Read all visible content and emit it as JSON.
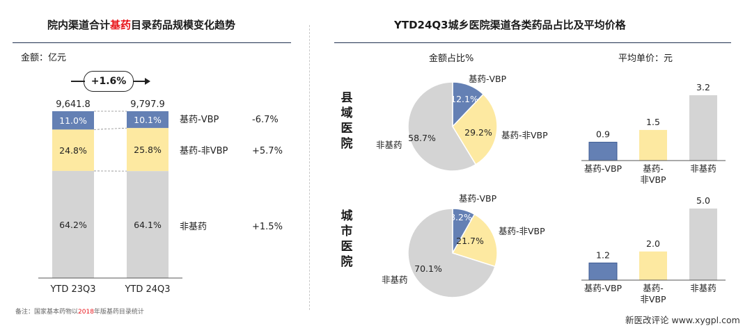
{
  "left": {
    "title_pre": "院内渠道合计",
    "title_hl": "基药",
    "title_post": "目录药品规模变化趋势",
    "unit": "金额：亿元",
    "growth": "+1.6%",
    "note_pre": "备注：国家基本药物以",
    "note_year": "2018",
    "note_post": "年版基药目录统计"
  },
  "right": {
    "title": "YTD24Q3城乡医院渠道各类药品占比及平均价格",
    "pie_header": "金额占比%",
    "bar_header": "平均单价：元",
    "county_label": [
      "县",
      "域",
      "医",
      "院"
    ],
    "city_label": [
      "城",
      "市",
      "医",
      "院"
    ]
  },
  "watermark": "新医改评论 www.xygpl.com",
  "colors": {
    "vbp": "#6480b4",
    "nonvbp": "#fde9a1",
    "nonbase": "#d4d4d4",
    "rule": "#1f2f4f",
    "highlight": "#e8151b"
  },
  "chart_data": [
    {
      "type": "bar",
      "subtype": "stacked-100",
      "categories": [
        "YTD 23Q3",
        "YTD 24Q3"
      ],
      "totals": [
        "9,641.8",
        "9,797.9"
      ],
      "series": [
        {
          "name": "基药-VBP",
          "values": [
            11.0,
            10.1
          ],
          "labels": [
            "11.0%",
            "10.1%"
          ],
          "growth": "-6.7%",
          "color": "#6480b4"
        },
        {
          "name": "基药-非VBP",
          "values": [
            24.8,
            25.8
          ],
          "labels": [
            "24.8%",
            "25.8%"
          ],
          "growth": "+5.7%",
          "color": "#fde9a1"
        },
        {
          "name": "非基药",
          "values": [
            64.2,
            64.1
          ],
          "labels": [
            "64.2%",
            "64.1%"
          ],
          "growth": "+1.5%",
          "color": "#d4d4d4"
        }
      ],
      "ylim": [
        0,
        100
      ]
    },
    {
      "type": "pie",
      "panel": "县域医院",
      "slices": [
        {
          "name": "基药-VBP",
          "value": 12.1,
          "label": "12.1%",
          "color": "#6480b4"
        },
        {
          "name": "基药-非VBP",
          "value": 29.2,
          "label": "29.2%",
          "color": "#fde9a1"
        },
        {
          "name": "非基药",
          "value": 58.7,
          "label": "58.7%",
          "color": "#d4d4d4"
        }
      ]
    },
    {
      "type": "pie",
      "panel": "城市医院",
      "slices": [
        {
          "name": "基药-VBP",
          "value": 8.2,
          "label": "8.2%",
          "color": "#6480b4"
        },
        {
          "name": "基药-非VBP",
          "value": 21.7,
          "label": "21.7%",
          "color": "#fde9a1"
        },
        {
          "name": "非基药",
          "value": 70.1,
          "label": "70.1%",
          "color": "#d4d4d4"
        }
      ]
    },
    {
      "type": "bar",
      "panel": "县域医院",
      "categories": [
        "基药-VBP",
        "基药-非VBP",
        "非基药"
      ],
      "values": [
        0.9,
        1.5,
        3.2
      ],
      "labels": [
        "0.9",
        "1.5",
        "3.2"
      ],
      "colors": [
        "#6480b4",
        "#fde9a1",
        "#d4d4d4"
      ],
      "ylim": [
        0,
        3.2
      ]
    },
    {
      "type": "bar",
      "panel": "城市医院",
      "categories": [
        "基药-VBP",
        "基药-非VBP",
        "非基药"
      ],
      "values": [
        1.2,
        2.0,
        5.0
      ],
      "labels": [
        "1.2",
        "2.0",
        "5.0"
      ],
      "colors": [
        "#6480b4",
        "#fde9a1",
        "#d4d4d4"
      ],
      "ylim": [
        0,
        5.0
      ]
    }
  ]
}
